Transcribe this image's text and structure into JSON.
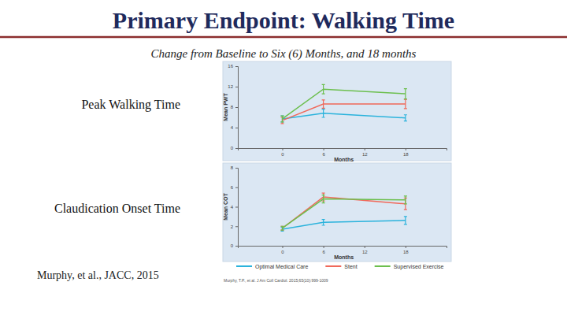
{
  "slide": {
    "title": "Primary Endpoint: Walking Time",
    "subtitle": "Change from Baseline to Six (6) Months, and 18 months",
    "citation": "Murphy, et al., JACC, 2015",
    "source": "Murphy, T.P., et al. J Am Coll Cardiol. 2015;65(10):999-1009"
  },
  "chart_data": [
    {
      "type": "line",
      "title": "Peak Walking Time",
      "x_label": "Months",
      "y_label": "Mean PWT",
      "x": [
        0,
        6,
        18
      ],
      "xlim": [
        -6.5,
        24
      ],
      "xticks": [
        0,
        6,
        12,
        18
      ],
      "ylim": [
        0,
        16
      ],
      "yticks": [
        0,
        4,
        8,
        12,
        16
      ],
      "grid": false,
      "series": [
        {
          "color": "#2bb3dc",
          "values": [
            5.7,
            6.8,
            5.9
          ],
          "errors": [
            0.6,
            0.8,
            0.6
          ]
        },
        {
          "color": "#f0695a",
          "values": [
            5.4,
            8.6,
            8.6
          ],
          "errors": [
            0.6,
            0.8,
            0.9
          ]
        },
        {
          "color": "#6cbf4e",
          "values": [
            5.7,
            11.5,
            10.6
          ],
          "errors": [
            0.6,
            0.9,
            1.0
          ]
        }
      ]
    },
    {
      "type": "line",
      "x_label": "Months",
      "y_label": "Mean COT",
      "title": "Claudication Onset Time",
      "x": [
        0,
        6,
        18
      ],
      "xlim": [
        -6.5,
        24
      ],
      "xticks": [
        0,
        6,
        12,
        18
      ],
      "ylim": [
        0,
        8
      ],
      "yticks": [
        0,
        2,
        4,
        6,
        8
      ],
      "grid": false,
      "legend": "bottom",
      "series": [
        {
          "name": "Optimal Medical Care",
          "color": "#2bb3dc",
          "values": [
            1.7,
            2.4,
            2.6
          ],
          "errors": [
            0.2,
            0.3,
            0.4
          ]
        },
        {
          "name": "Stent",
          "color": "#f0695a",
          "values": [
            1.8,
            5.0,
            4.3
          ],
          "errors": [
            0.2,
            0.4,
            0.6
          ]
        },
        {
          "name": "Supervised Exercise",
          "color": "#6cbf4e",
          "values": [
            1.8,
            4.8,
            4.7
          ],
          "errors": [
            0.2,
            0.4,
            0.4
          ]
        }
      ]
    }
  ]
}
